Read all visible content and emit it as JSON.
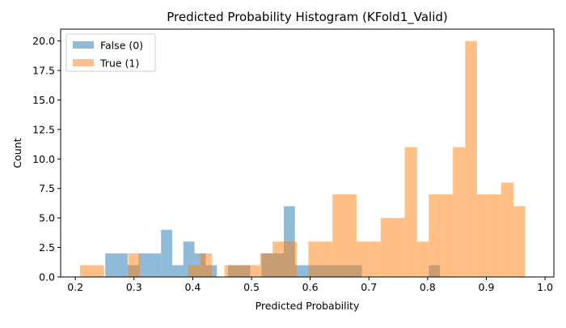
{
  "chart_data": {
    "type": "bar",
    "title": "Predicted Probability Histogram (KFold1_Valid)",
    "xlabel": "Predicted Probability",
    "ylabel": "Count",
    "xlim": [
      0.175,
      1.015
    ],
    "ylim": [
      0,
      21
    ],
    "xticks": [
      0.2,
      0.3,
      0.4,
      0.5,
      0.6,
      0.7,
      0.8,
      0.9,
      1.0
    ],
    "yticks": [
      0.0,
      2.5,
      5.0,
      7.5,
      10.0,
      12.5,
      15.0,
      17.5,
      20.0
    ],
    "xtick_labels": [
      "0.2",
      "0.3",
      "0.4",
      "0.5",
      "0.6",
      "0.7",
      "0.8",
      "0.9",
      "1.0"
    ],
    "ytick_labels": [
      "0.0",
      "2.5",
      "5.0",
      "7.5",
      "10.0",
      "12.5",
      "15.0",
      "17.5",
      "20.0"
    ],
    "grid": false,
    "legend_position": "top-left",
    "series": [
      {
        "name": "False (0)",
        "color": "#1f77b4",
        "alpha": 0.5,
        "bins": [
          {
            "x0": 0.251,
            "x1": 0.27,
            "count": 2
          },
          {
            "x0": 0.27,
            "x1": 0.289,
            "count": 2
          },
          {
            "x0": 0.289,
            "x1": 0.308,
            "count": 1
          },
          {
            "x0": 0.308,
            "x1": 0.327,
            "count": 2
          },
          {
            "x0": 0.327,
            "x1": 0.346,
            "count": 2
          },
          {
            "x0": 0.346,
            "x1": 0.365,
            "count": 4
          },
          {
            "x0": 0.365,
            "x1": 0.384,
            "count": 1
          },
          {
            "x0": 0.384,
            "x1": 0.403,
            "count": 3
          },
          {
            "x0": 0.403,
            "x1": 0.422,
            "count": 2
          },
          {
            "x0": 0.422,
            "x1": 0.441,
            "count": 1
          },
          {
            "x0": 0.46,
            "x1": 0.479,
            "count": 1
          },
          {
            "x0": 0.479,
            "x1": 0.498,
            "count": 1
          },
          {
            "x0": 0.517,
            "x1": 0.536,
            "count": 2
          },
          {
            "x0": 0.536,
            "x1": 0.555,
            "count": 2
          },
          {
            "x0": 0.555,
            "x1": 0.574,
            "count": 6
          },
          {
            "x0": 0.574,
            "x1": 0.593,
            "count": 1
          },
          {
            "x0": 0.593,
            "x1": 0.612,
            "count": 1
          },
          {
            "x0": 0.612,
            "x1": 0.631,
            "count": 1
          },
          {
            "x0": 0.631,
            "x1": 0.65,
            "count": 1
          },
          {
            "x0": 0.65,
            "x1": 0.669,
            "count": 1
          },
          {
            "x0": 0.669,
            "x1": 0.688,
            "count": 1
          },
          {
            "x0": 0.802,
            "x1": 0.821,
            "count": 1
          }
        ]
      },
      {
        "name": "True (1)",
        "color": "#ff7f0e",
        "alpha": 0.5,
        "bins": [
          {
            "x0": 0.208,
            "x1": 0.228,
            "count": 1
          },
          {
            "x0": 0.228,
            "x1": 0.249,
            "count": 1
          },
          {
            "x0": 0.29,
            "x1": 0.31,
            "count": 2
          },
          {
            "x0": 0.392,
            "x1": 0.413,
            "count": 1
          },
          {
            "x0": 0.413,
            "x1": 0.433,
            "count": 2
          },
          {
            "x0": 0.454,
            "x1": 0.474,
            "count": 1
          },
          {
            "x0": 0.474,
            "x1": 0.495,
            "count": 1
          },
          {
            "x0": 0.495,
            "x1": 0.515,
            "count": 1
          },
          {
            "x0": 0.515,
            "x1": 0.536,
            "count": 2
          },
          {
            "x0": 0.536,
            "x1": 0.556,
            "count": 3
          },
          {
            "x0": 0.556,
            "x1": 0.577,
            "count": 3
          },
          {
            "x0": 0.597,
            "x1": 0.618,
            "count": 3
          },
          {
            "x0": 0.618,
            "x1": 0.638,
            "count": 3
          },
          {
            "x0": 0.638,
            "x1": 0.659,
            "count": 7
          },
          {
            "x0": 0.659,
            "x1": 0.679,
            "count": 7
          },
          {
            "x0": 0.679,
            "x1": 0.7,
            "count": 3
          },
          {
            "x0": 0.7,
            "x1": 0.72,
            "count": 3
          },
          {
            "x0": 0.72,
            "x1": 0.741,
            "count": 5
          },
          {
            "x0": 0.741,
            "x1": 0.761,
            "count": 5
          },
          {
            "x0": 0.761,
            "x1": 0.782,
            "count": 11
          },
          {
            "x0": 0.782,
            "x1": 0.802,
            "count": 3
          },
          {
            "x0": 0.802,
            "x1": 0.823,
            "count": 7
          },
          {
            "x0": 0.823,
            "x1": 0.843,
            "count": 7
          },
          {
            "x0": 0.843,
            "x1": 0.864,
            "count": 11
          },
          {
            "x0": 0.864,
            "x1": 0.884,
            "count": 20
          },
          {
            "x0": 0.884,
            "x1": 0.905,
            "count": 7
          },
          {
            "x0": 0.905,
            "x1": 0.925,
            "count": 7
          },
          {
            "x0": 0.925,
            "x1": 0.946,
            "count": 8
          },
          {
            "x0": 0.946,
            "x1": 0.966,
            "count": 6
          }
        ]
      }
    ]
  }
}
